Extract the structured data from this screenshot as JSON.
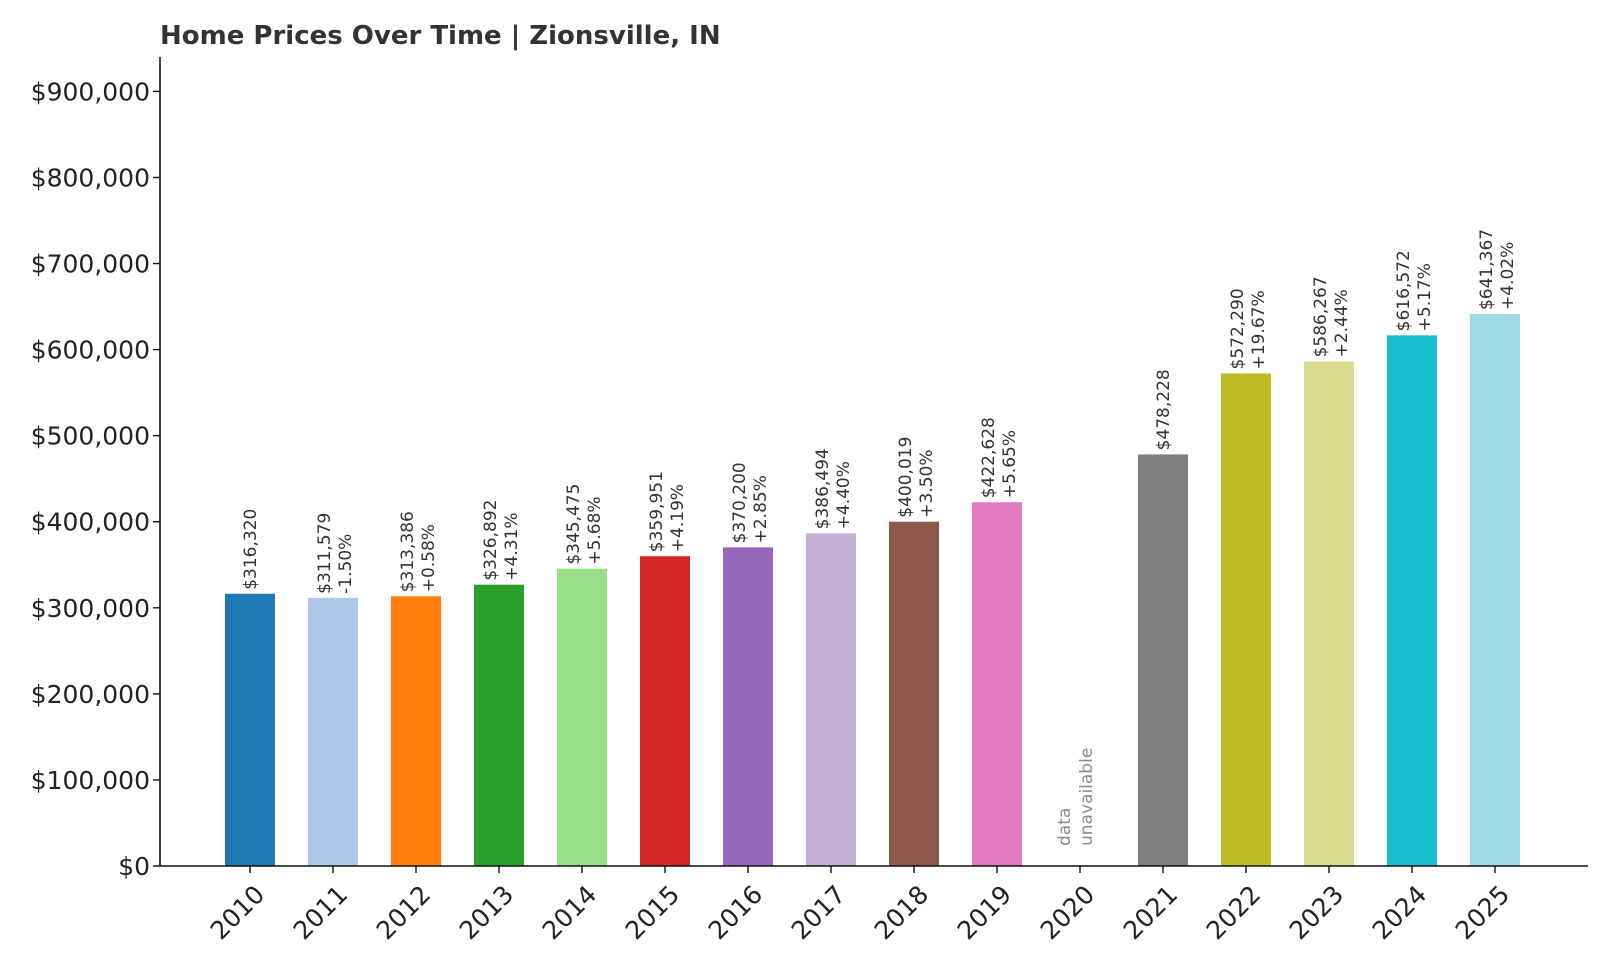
{
  "chart_data": {
    "type": "bar",
    "title": "Home Prices Over Time | Zionsville, IN",
    "xlabel": "",
    "ylabel": "",
    "ylim": [
      0,
      940000
    ],
    "ytick_values": [
      0,
      100000,
      200000,
      300000,
      400000,
      500000,
      600000,
      700000,
      800000,
      900000
    ],
    "ytick_labels": [
      "$0",
      "$100,000",
      "$200,000",
      "$300,000",
      "$400,000",
      "$500,000",
      "$600,000",
      "$700,000",
      "$800,000",
      "$900,000"
    ],
    "grid": false,
    "legend": "none",
    "categories": [
      "2010",
      "2011",
      "2012",
      "2013",
      "2014",
      "2015",
      "2016",
      "2017",
      "2018",
      "2019",
      "2020",
      "2021",
      "2022",
      "2023",
      "2024",
      "2025"
    ],
    "values": [
      316320,
      311579,
      313386,
      326892,
      345475,
      359951,
      370200,
      386494,
      400019,
      422628,
      null,
      478228,
      572290,
      586267,
      616572,
      641367
    ],
    "value_labels": [
      "$316,320",
      "$311,579",
      "$313,386",
      "$326,892",
      "$345,475",
      "$359,951",
      "$370,200",
      "$386,494",
      "$400,019",
      "$422,628",
      "",
      "$478,228",
      "$572,290",
      "$586,267",
      "$616,572",
      "$641,367"
    ],
    "change_labels": [
      "",
      "-1.50%",
      "+0.58%",
      "+4.31%",
      "+5.68%",
      "+4.19%",
      "+2.85%",
      "+4.40%",
      "+3.50%",
      "+5.65%",
      "",
      "",
      "+19.67%",
      "+2.44%",
      "+5.17%",
      "+4.02%"
    ],
    "missing_label_lines": [
      "data",
      "unavailable"
    ],
    "colors": [
      "#1f77b4",
      "#aec7e8",
      "#ff7f0e",
      "#2ca02c",
      "#98df8a",
      "#d62728",
      "#9467bd",
      "#c5b0d5",
      "#8c564b",
      "#e377c2",
      "#f7b6d2",
      "#7f7f7f",
      "#bcbd22",
      "#dbdb8d",
      "#17becf",
      "#9edae5"
    ]
  }
}
